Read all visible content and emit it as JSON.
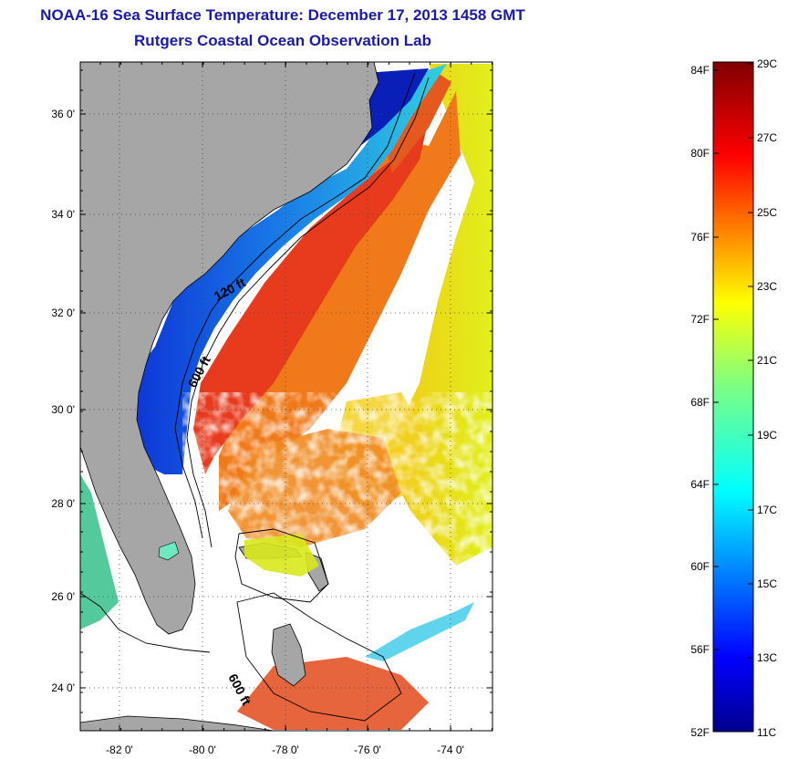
{
  "header": {
    "title": "NOAA-16 Sea Surface Temperature:  December 17, 2013 1458 GMT",
    "subtitle": "Rutgers Coastal Ocean Observation Lab"
  },
  "map": {
    "latitude_labels": [
      "36 0'",
      "34 0'",
      "32 0'",
      "30 0'",
      "28 0'",
      "26 0'",
      "24 0'"
    ],
    "longitude_labels": [
      "-82 0'",
      "-80 0'",
      "-78 0'",
      "-76 0'",
      "-74 0'"
    ],
    "contour_labels": [
      "120 ft",
      "600 ft",
      "600 ft"
    ],
    "colors": {
      "land": "#a6a6a6",
      "cloud": "#ffffff",
      "cold_shelf": "#0a2ad6",
      "gulf_stream": "#e8401c"
    }
  },
  "colorbar": {
    "fahrenheit_labels": [
      "84F",
      "80F",
      "76F",
      "72F",
      "68F",
      "64F",
      "60F",
      "56F",
      "52F"
    ],
    "celsius_labels": [
      "29C",
      "27C",
      "25C",
      "23C",
      "21C",
      "19C",
      "17C",
      "15C",
      "13C",
      "11C"
    ],
    "range_c": [
      11,
      29
    ]
  }
}
